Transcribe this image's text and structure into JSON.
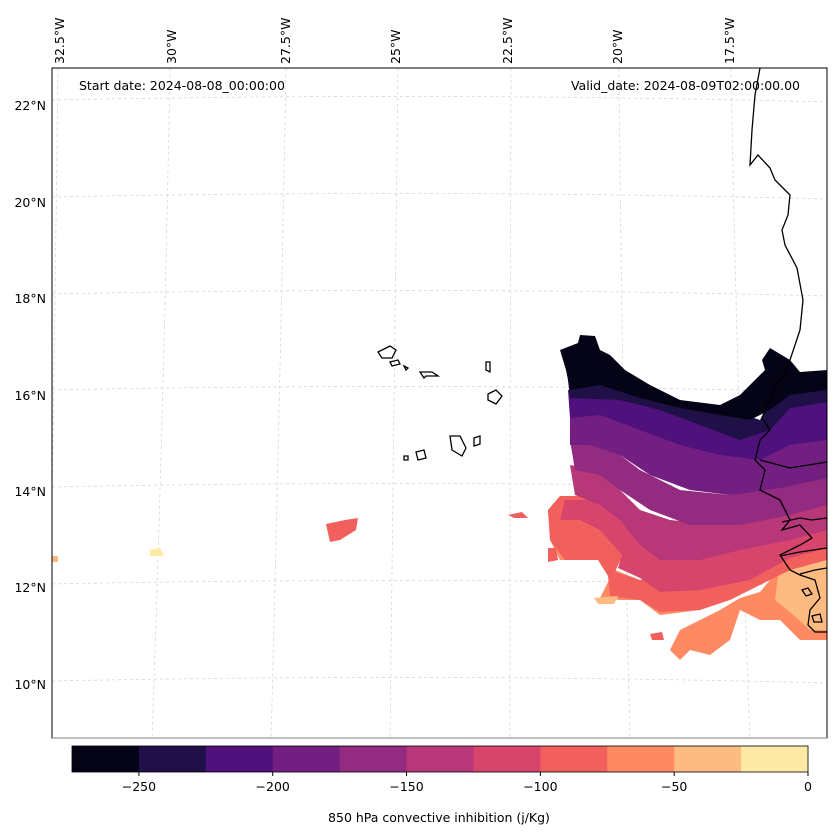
{
  "header": {
    "start_date": "Start date: 2024-08-08_00:00:00",
    "valid_date": "Valid_date: 2024-08-09T02:00:00.00"
  },
  "lon_labels": [
    "32.5°W",
    "30°W",
    "27.5°W",
    "25°W",
    "22.5°W",
    "20°W",
    "17.5°W"
  ],
  "lat_labels": [
    "22°N",
    "20°N",
    "18°N",
    "16°N",
    "14°N",
    "12°N",
    "10°N"
  ],
  "colorbar": {
    "label": "850 hPa convective inhibition (j/Kg)",
    "ticks": [
      "−250",
      "−200",
      "−150",
      "−100",
      "−50",
      "0"
    ],
    "range": [
      -275,
      0
    ],
    "colors": [
      "#050416",
      "#1f1147",
      "#4f117b",
      "#721f81",
      "#932b80",
      "#b73779",
      "#d8456c",
      "#f1605d",
      "#fd8a63",
      "#febb81",
      "#feeaa5"
    ]
  },
  "map": {
    "region": "Eastern tropical Atlantic / West Africa",
    "colors": {
      "coastline": "#000000",
      "gridline": "#d4d4d4"
    }
  }
}
